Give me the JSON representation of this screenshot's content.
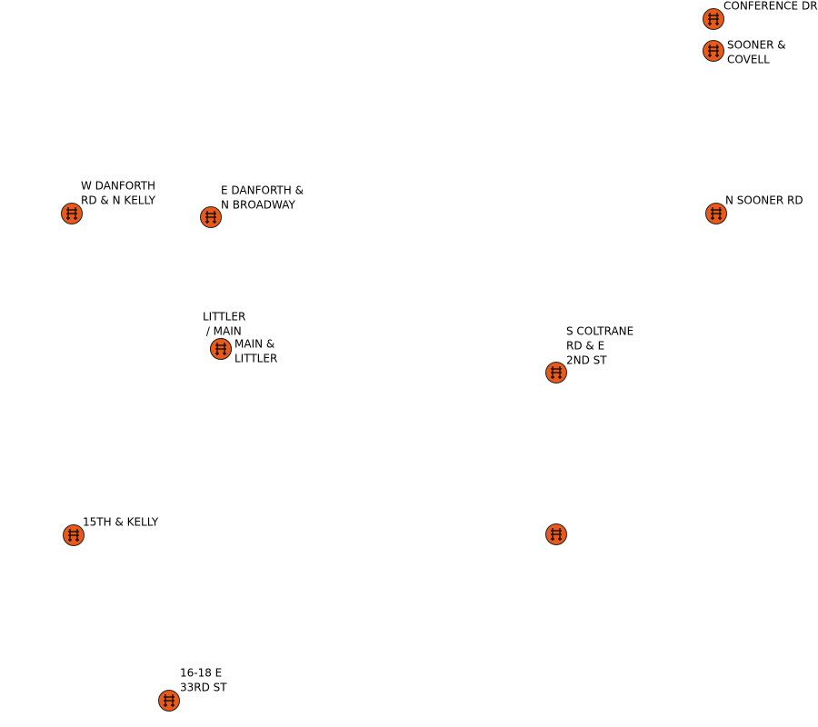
{
  "markers": [
    {
      "label_lines": [
        "CONFERENCE DR"
      ]
    },
    {
      "label_lines": [
        "SOONER &",
        "COVELL"
      ]
    },
    {
      "label_lines": [
        "N SOONER RD"
      ]
    },
    {
      "label_lines": [
        "W DANFORTH",
        "RD & N KELLY"
      ]
    },
    {
      "label_lines": [
        "E DANFORTH &",
        "N BROADWAY"
      ]
    },
    {
      "label_lines": [
        "LITTLER",
        " / MAIN"
      ]
    },
    {
      "label_lines": [
        "MAIN &",
        "LITTLER"
      ]
    },
    {
      "label_lines": [
        "S COLTRANE",
        "RD & E",
        "2ND ST"
      ]
    },
    {
      "label_lines": [
        "15TH & KELLY"
      ]
    },
    {
      "label_lines": null
    },
    {
      "label_lines": [
        "16-18 E",
        "33RD ST"
      ]
    }
  ]
}
